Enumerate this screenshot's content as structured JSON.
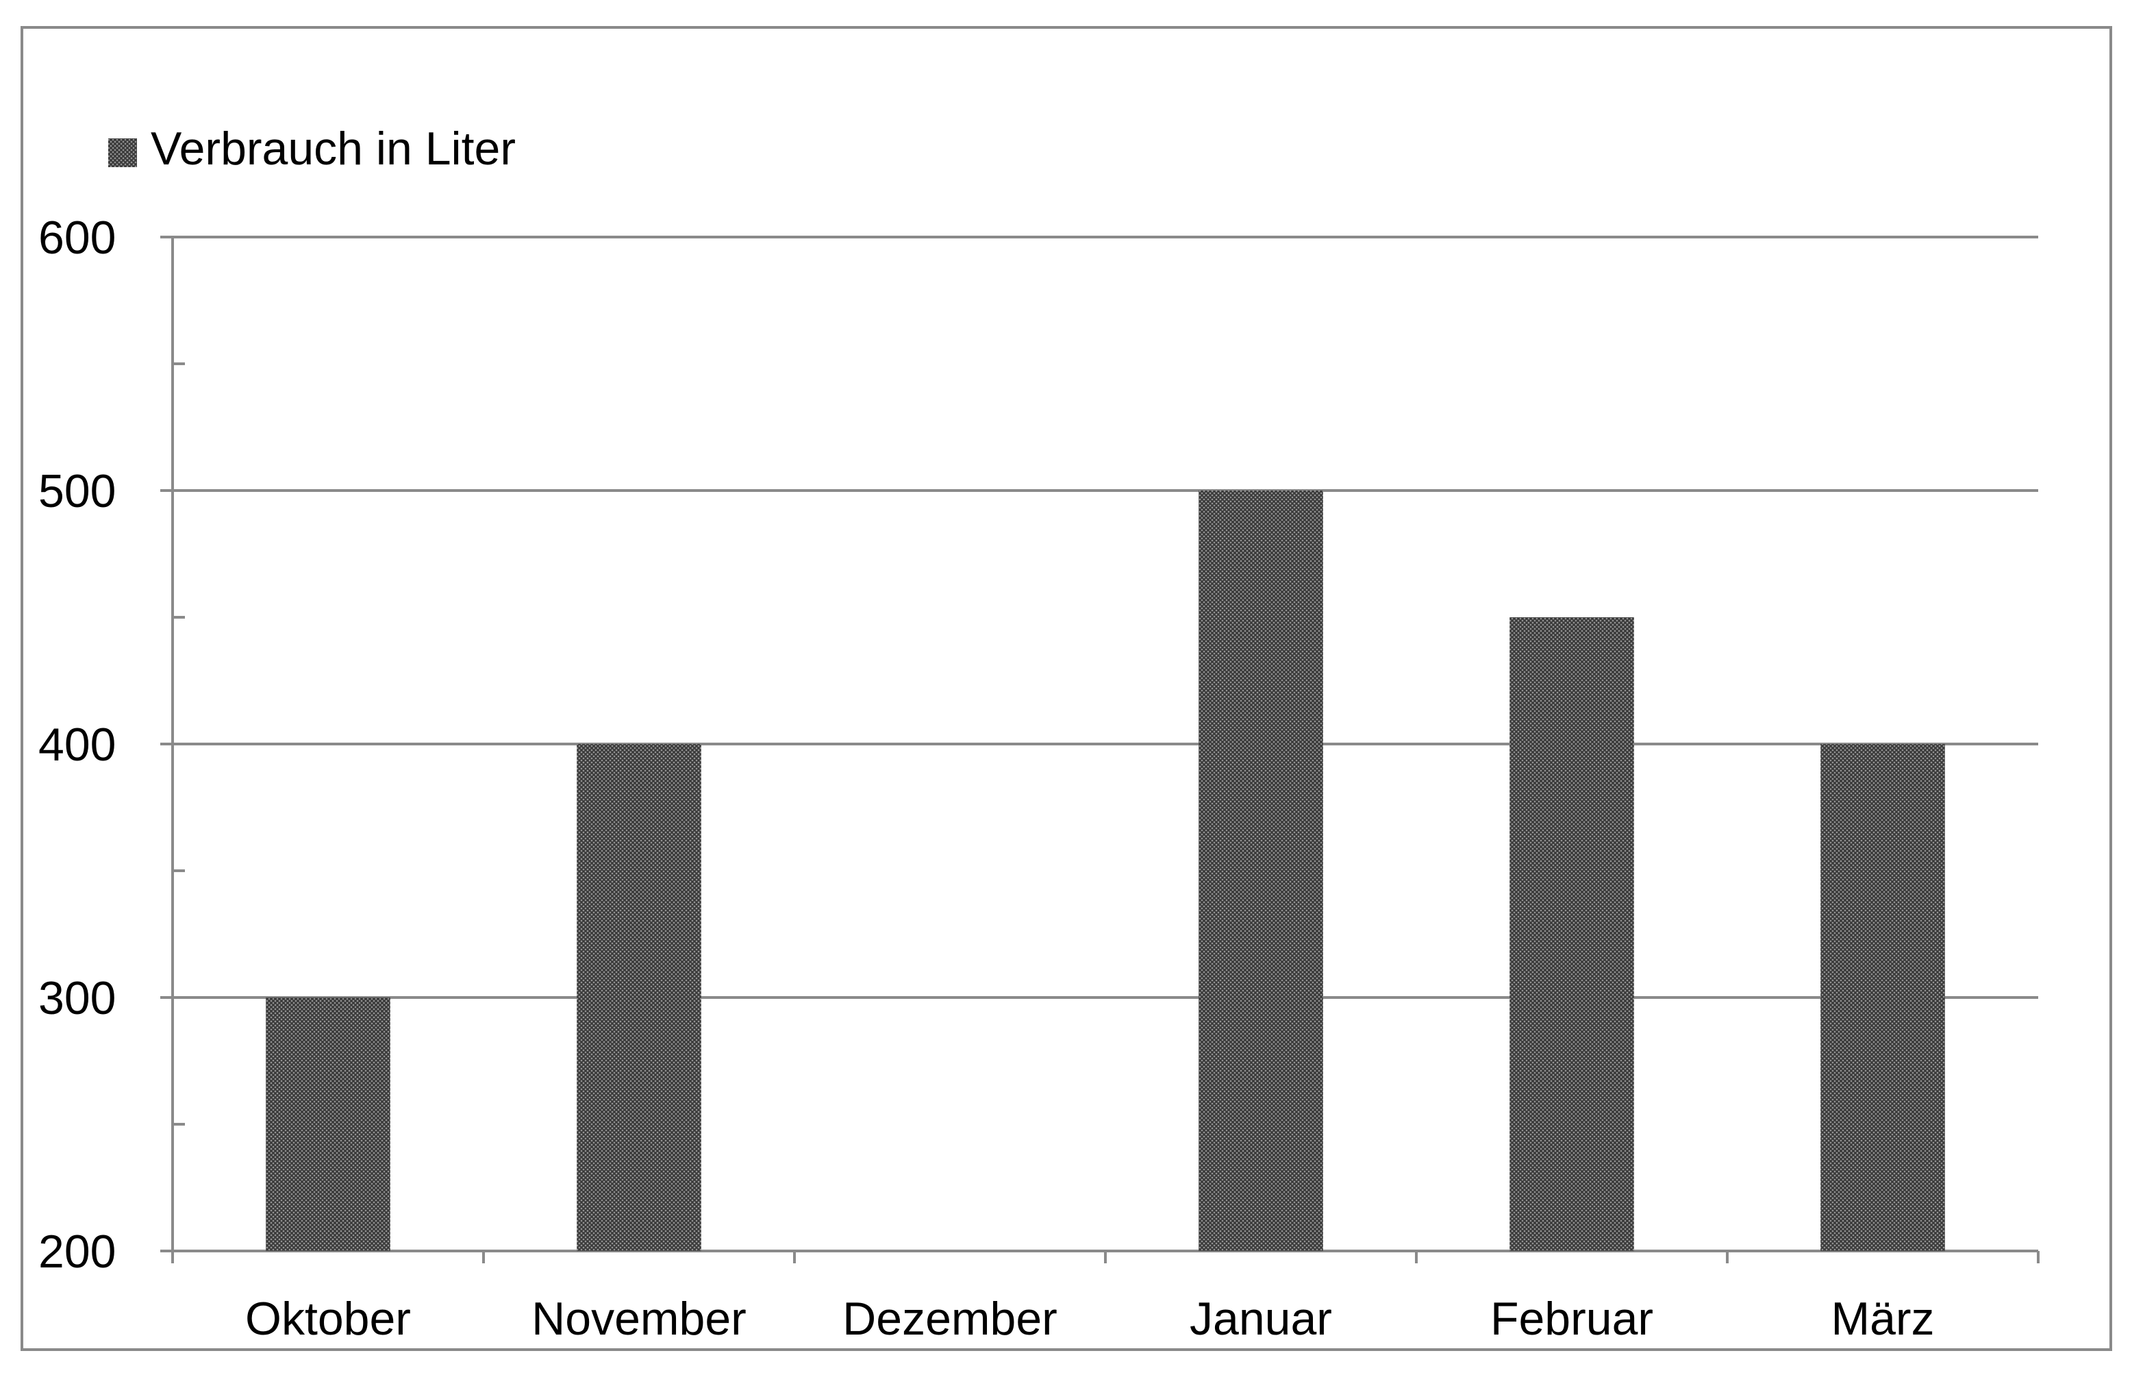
{
  "chart_data": {
    "type": "bar",
    "title": "",
    "xlabel": "",
    "ylabel": "",
    "categories": [
      "Oktober",
      "November",
      "Dezember",
      "Januar",
      "Februar",
      "März"
    ],
    "series": [
      {
        "name": "Verbrauch in Liter",
        "values": [
          300,
          400,
          200,
          500,
          450,
          400
        ],
        "color": "#5e5e5e",
        "pattern": "crosshatch"
      }
    ],
    "ylim": [
      200,
      600
    ],
    "yticks": [
      "200",
      "300",
      "400",
      "500",
      "600"
    ],
    "grid": true,
    "legend": "top-left"
  }
}
